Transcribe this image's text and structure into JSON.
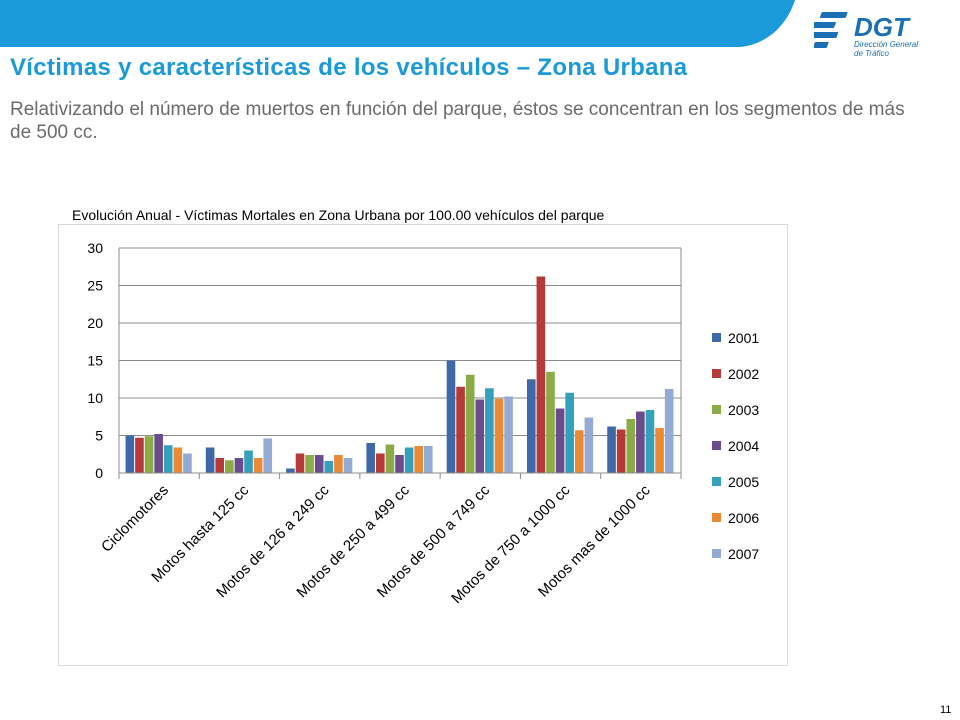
{
  "header": {
    "title": "Víctimas y características de los vehículos – Zona Urbana",
    "subtitle": "Relativizando el número de muertos en función del parque, éstos se concentran en los segmentos de más de 500 cc.",
    "logo_text": "DGT",
    "logo_subtext_1": "Dirección General",
    "logo_subtext_2": "de Tráfico",
    "banner_color": "#1a9ad8"
  },
  "chart_data": {
    "type": "bar",
    "title": "Evolución Anual - Víctimas Mortales en Zona Urbana por 100.00 vehículos del parque",
    "categories": [
      "Ciclomotores",
      "Motos hasta 125 cc",
      "Motos de 126 a 249 cc",
      "Motos de 250 a 499 cc",
      "Motos de 500 a 749 cc",
      "Motos de 750 a 1000 cc",
      "Motos mas de 1000 cc"
    ],
    "series": [
      {
        "name": "2001",
        "color": "#3f68a8",
        "values": [
          5.0,
          3.4,
          0.6,
          4.0,
          15.0,
          12.5,
          6.2
        ]
      },
      {
        "name": "2002",
        "color": "#b63a37",
        "values": [
          4.7,
          2.0,
          2.6,
          2.6,
          11.5,
          26.2,
          5.8
        ]
      },
      {
        "name": "2003",
        "color": "#8aab46",
        "values": [
          4.9,
          1.7,
          2.4,
          3.8,
          13.1,
          13.5,
          7.2
        ]
      },
      {
        "name": "2004",
        "color": "#6a4b8c",
        "values": [
          5.2,
          2.0,
          2.4,
          2.4,
          9.8,
          8.6,
          8.2
        ]
      },
      {
        "name": "2005",
        "color": "#34a0bc",
        "values": [
          3.7,
          3.0,
          1.6,
          3.4,
          11.3,
          10.7,
          8.4
        ]
      },
      {
        "name": "2006",
        "color": "#ea8a35",
        "values": [
          3.4,
          2.0,
          2.4,
          3.6,
          9.9,
          5.7,
          6.0
        ]
      },
      {
        "name": "2007",
        "color": "#93aad4",
        "values": [
          2.6,
          4.6,
          2.0,
          3.6,
          10.2,
          7.4,
          11.2
        ]
      }
    ],
    "ylim": [
      0,
      30
    ],
    "yticks": [
      0,
      5,
      10,
      15,
      20,
      25,
      30
    ],
    "grid": true,
    "legend": "right"
  },
  "footer": {
    "page_number": "11"
  }
}
